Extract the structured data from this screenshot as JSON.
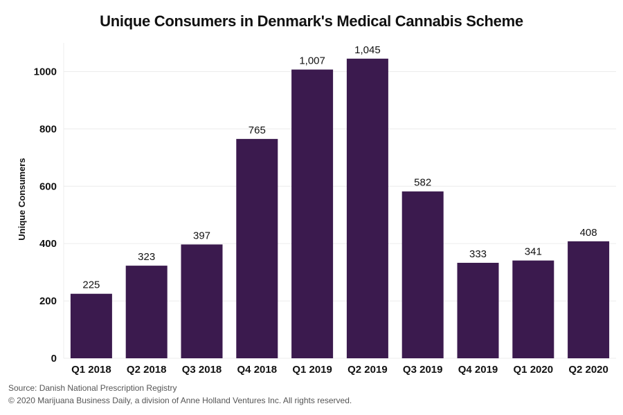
{
  "chart_data": {
    "type": "bar",
    "title": "Unique Consumers in Denmark's Medical Cannabis Scheme",
    "xlabel": "",
    "ylabel": "Unique Consumers",
    "categories": [
      "Q1 2018",
      "Q2 2018",
      "Q3 2018",
      "Q4 2018",
      "Q1 2019",
      "Q2 2019",
      "Q3 2019",
      "Q4 2019",
      "Q1 2020",
      "Q2 2020"
    ],
    "values": [
      225,
      323,
      397,
      765,
      1007,
      1045,
      582,
      333,
      341,
      408
    ],
    "value_labels": [
      "225",
      "323",
      "397",
      "765",
      "1,007",
      "1,045",
      "582",
      "333",
      "341",
      "408"
    ],
    "ylim": [
      0,
      1100
    ],
    "yticks": [
      0,
      200,
      400,
      600,
      800,
      1000
    ],
    "grid": true,
    "legend": "none",
    "bar_color": "#3b1a4e"
  },
  "footer": {
    "source": "Source: Danish National Prescription Registry",
    "copyright": "© 2020 Marijuana Business Daily, a division of Anne Holland Ventures Inc. All rights reserved."
  }
}
